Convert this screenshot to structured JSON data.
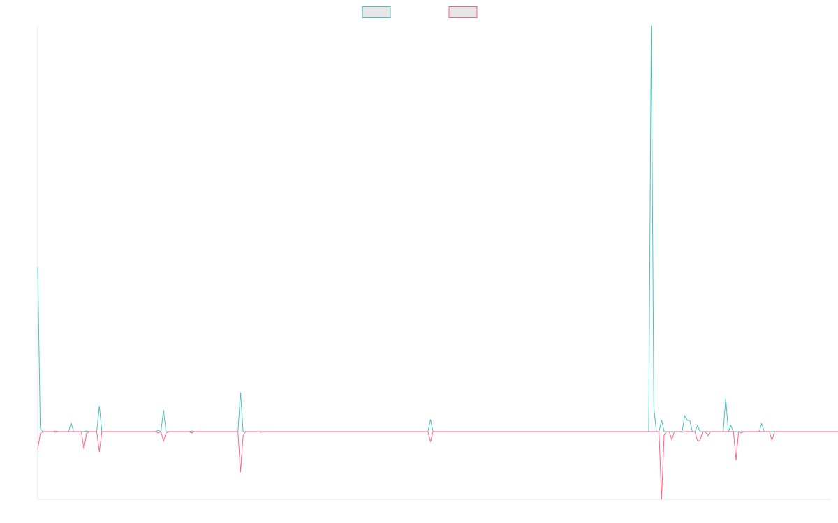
{
  "colors": {
    "series_a": "#4bc0c0",
    "series_b": "#ff6384",
    "legend_fill": "#e5e5e5",
    "axis": "#e6e6e6"
  },
  "chart_data": {
    "type": "line",
    "title": "",
    "xlabel": "",
    "ylabel": "",
    "grid": false,
    "legend_position": "top",
    "x_count": 310,
    "ylim": [
      -100,
      600
    ],
    "series": [
      {
        "color": "#4bc0c0",
        "values": [
          243,
          5,
          0,
          0,
          0,
          0,
          0,
          1,
          0,
          0,
          0,
          0,
          0,
          13,
          0,
          0,
          0,
          0,
          0,
          1,
          0,
          0,
          0,
          0,
          38,
          0,
          0,
          0,
          0,
          0,
          0,
          0,
          0,
          0,
          0,
          0,
          0,
          0,
          0,
          0,
          0,
          0,
          0,
          0,
          0,
          0,
          0,
          2,
          0,
          32,
          0,
          0,
          0,
          0,
          0,
          0,
          0,
          0,
          0,
          0,
          1,
          0,
          0,
          0,
          0,
          0,
          0,
          0,
          0,
          0,
          0,
          0,
          0,
          0,
          0,
          0,
          0,
          0,
          0,
          58,
          0,
          0,
          0,
          0,
          0,
          0,
          0,
          0,
          0,
          0,
          0,
          0,
          0,
          0,
          0,
          0,
          0,
          0,
          0,
          0,
          0,
          0,
          0,
          0,
          0,
          0,
          0,
          0,
          0,
          0,
          0,
          0,
          0,
          0,
          0,
          0,
          0,
          0,
          0,
          0,
          0,
          0,
          0,
          0,
          0,
          0,
          0,
          0,
          0,
          0,
          0,
          0,
          0,
          0,
          0,
          0,
          0,
          0,
          0,
          0,
          0,
          0,
          0,
          0,
          0,
          0,
          0,
          0,
          0,
          0,
          0,
          0,
          0,
          18,
          0,
          0,
          0,
          0,
          0,
          0,
          0,
          0,
          0,
          0,
          0,
          0,
          0,
          0,
          0,
          0,
          0,
          0,
          0,
          0,
          0,
          0,
          0,
          0,
          0,
          0,
          0,
          0,
          0,
          0,
          0,
          0,
          0,
          0,
          0,
          0,
          0,
          0,
          0,
          0,
          0,
          0,
          0,
          0,
          0,
          0,
          0,
          0,
          0,
          0,
          0,
          0,
          0,
          0,
          0,
          0,
          0,
          0,
          0,
          0,
          0,
          0,
          0,
          0,
          0,
          0,
          0,
          0,
          0,
          0,
          0,
          0,
          0,
          0,
          0,
          0,
          0,
          0,
          0,
          0,
          0,
          0,
          0,
          0,
          0,
          600,
          35,
          0,
          0,
          17,
          0,
          0,
          0,
          0,
          0,
          0,
          0,
          0,
          23,
          17,
          16,
          0,
          0,
          9,
          0,
          0,
          0,
          0,
          0,
          0,
          0,
          0,
          0,
          0,
          49,
          0,
          9,
          0,
          0,
          0,
          0,
          0,
          0,
          0,
          0,
          0,
          0,
          0,
          12,
          0,
          0,
          0,
          0,
          0,
          0,
          0,
          0,
          0,
          0,
          0,
          0,
          0,
          0,
          0,
          0,
          0,
          0,
          0,
          0,
          0,
          0,
          0,
          0,
          0,
          0,
          0,
          0,
          0
        ]
      },
      {
        "color": "#ff6384",
        "values": [
          -26,
          -3,
          0,
          0,
          0,
          0,
          0,
          -1,
          0,
          0,
          0,
          0,
          0,
          0,
          0,
          0,
          0,
          0,
          -26,
          -3,
          0,
          0,
          0,
          0,
          -30,
          0,
          0,
          0,
          0,
          0,
          0,
          0,
          0,
          0,
          0,
          0,
          0,
          0,
          0,
          0,
          0,
          0,
          0,
          0,
          0,
          0,
          0,
          -2,
          0,
          -14,
          -2,
          0,
          0,
          0,
          0,
          0,
          0,
          0,
          0,
          0,
          -2,
          0,
          0,
          0,
          0,
          0,
          0,
          0,
          0,
          0,
          0,
          0,
          0,
          0,
          0,
          0,
          0,
          0,
          0,
          -60,
          -6,
          0,
          0,
          0,
          0,
          0,
          0,
          -1,
          0,
          0,
          0,
          0,
          0,
          0,
          0,
          0,
          0,
          0,
          0,
          0,
          0,
          0,
          0,
          0,
          0,
          0,
          0,
          0,
          0,
          0,
          0,
          0,
          0,
          0,
          0,
          0,
          0,
          0,
          0,
          0,
          0,
          0,
          0,
          0,
          0,
          0,
          0,
          0,
          0,
          0,
          0,
          0,
          0,
          0,
          0,
          0,
          0,
          0,
          0,
          0,
          0,
          0,
          0,
          0,
          0,
          0,
          0,
          0,
          0,
          0,
          0,
          0,
          0,
          -15,
          0,
          0,
          0,
          0,
          0,
          0,
          0,
          0,
          0,
          0,
          0,
          0,
          0,
          0,
          0,
          0,
          0,
          0,
          0,
          0,
          0,
          0,
          0,
          0,
          0,
          0,
          0,
          0,
          0,
          0,
          0,
          0,
          0,
          0,
          0,
          0,
          0,
          0,
          0,
          0,
          0,
          0,
          0,
          0,
          0,
          0,
          0,
          0,
          0,
          0,
          0,
          0,
          0,
          0,
          0,
          0,
          0,
          0,
          0,
          0,
          0,
          0,
          0,
          0,
          0,
          0,
          0,
          0,
          0,
          0,
          0,
          0,
          0,
          0,
          0,
          0,
          0,
          0,
          0,
          0,
          0,
          0,
          0,
          0,
          0,
          0,
          0,
          0,
          0,
          -100,
          -5,
          0,
          0,
          -12,
          0,
          0,
          0,
          -1,
          0,
          0,
          0,
          0,
          0,
          -14,
          -13,
          0,
          0,
          -6,
          0,
          0,
          0,
          0,
          0,
          0,
          0,
          0,
          0,
          0,
          -42,
          0,
          -2,
          0,
          0,
          0,
          0,
          0,
          0,
          0,
          0,
          0,
          0,
          0,
          -13,
          0,
          0,
          0,
          0,
          0,
          0,
          0,
          0,
          0,
          0,
          0,
          0,
          0,
          0,
          0,
          0,
          0,
          0,
          0,
          0,
          0,
          0,
          0,
          0,
          0,
          0,
          0,
          0
        ]
      }
    ]
  }
}
